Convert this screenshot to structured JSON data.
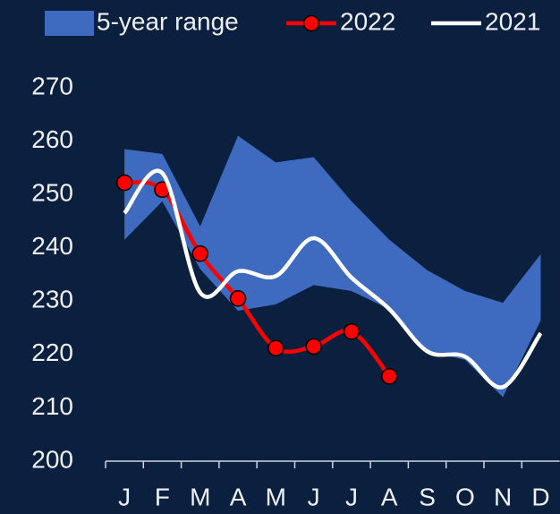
{
  "chart_data": {
    "type": "range-line",
    "categories": [
      "J",
      "F",
      "M",
      "A",
      "M",
      "J",
      "J",
      "A",
      "S",
      "O",
      "N",
      "D"
    ],
    "ylim": [
      200,
      270
    ],
    "yticks": [
      200,
      210,
      220,
      230,
      240,
      250,
      260,
      270
    ],
    "legend": "top",
    "series": [
      {
        "name": "5-year range",
        "color": "#3e6bbf",
        "high": [
          258.5,
          257.6,
          244,
          261,
          256,
          257,
          248.7,
          241.5,
          235.8,
          231.9,
          229.7,
          238.8
        ],
        "low": [
          241.5,
          248.7,
          236,
          228.2,
          229.4,
          233,
          231.9,
          228.5,
          220.6,
          219,
          212,
          226.4
        ]
      },
      {
        "name": "2022",
        "color": "#ff0000",
        "values": [
          252.2,
          250.9,
          238.9,
          230.5,
          221.2,
          221.5,
          224.3,
          215.9,
          null,
          null,
          null,
          null
        ]
      },
      {
        "name": "2021",
        "color": "#ffffff",
        "values": [
          246.5,
          254,
          231.6,
          235.6,
          234.7,
          241.8,
          234.4,
          228.5,
          220.6,
          219.6,
          213.9,
          224
        ]
      }
    ]
  }
}
